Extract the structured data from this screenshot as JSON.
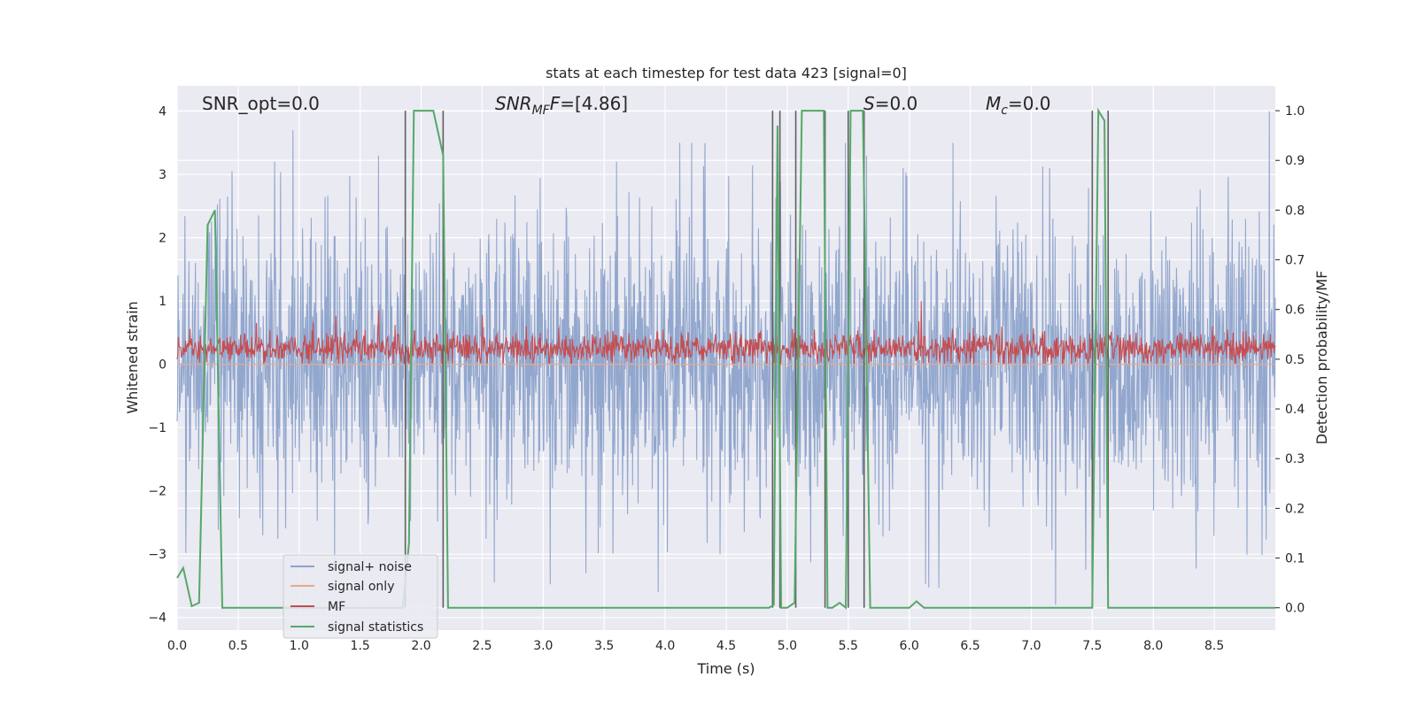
{
  "chart_data": {
    "type": "line",
    "title": "stats at each timestep for test data 423 [signal=0]",
    "xlabel": "Time (s)",
    "ylabel": "Whitened strain",
    "y2label": "Detection probability/MF",
    "xlim": [
      0,
      9.0
    ],
    "ylim": [
      -4.2,
      4.4
    ],
    "y2lim": [
      -0.045,
      1.05
    ],
    "xticks": [
      0.0,
      0.5,
      1.0,
      1.5,
      2.0,
      2.5,
      3.0,
      3.5,
      4.0,
      4.5,
      5.0,
      5.5,
      6.0,
      6.5,
      7.0,
      7.5,
      8.0,
      8.5
    ],
    "yticks": [
      -4,
      -3,
      -2,
      -1,
      0,
      1,
      2,
      3,
      4
    ],
    "y2ticks": [
      0.0,
      0.1,
      0.2,
      0.3,
      0.4,
      0.5,
      0.6,
      0.7,
      0.8,
      0.9,
      1.0
    ],
    "xtick_labels": [
      "0.0",
      "0.5",
      "1.0",
      "1.5",
      "2.0",
      "2.5",
      "3.0",
      "3.5",
      "4.0",
      "4.5",
      "5.0",
      "5.5",
      "6.0",
      "6.5",
      "7.0",
      "7.5",
      "8.0",
      "8.5"
    ],
    "ytick_labels": [
      "−4",
      "−3",
      "−2",
      "−1",
      "0",
      "1",
      "2",
      "3",
      "4"
    ],
    "y2tick_labels": [
      "0.0",
      "0.1",
      "0.2",
      "0.3",
      "0.4",
      "0.5",
      "0.6",
      "0.7",
      "0.8",
      "0.9",
      "1.0"
    ],
    "annotations": {
      "snr_opt": "SNR_opt=0.0",
      "snr_mf_main": "SNR",
      "snr_mf_sub": "MF",
      "snr_mf_value": "=[4.86]",
      "s_main": "S",
      "s_value": "=0.0",
      "mc_main": "M",
      "mc_sub": "c",
      "mc_value": "=0.0"
    },
    "legend": {
      "position": "lower-left",
      "entries": [
        "signal+ noise",
        "signal only",
        "MF",
        "signal statistics"
      ]
    },
    "colors": {
      "noise": "#8da3cb",
      "signal_only": "#e8a98a",
      "mf": "#c44e52",
      "stats": "#55a868",
      "vlines": "#606060",
      "background": "#eaeaf2",
      "grid": "#ffffff"
    },
    "series": [
      {
        "name": "signal+ noise",
        "axis": "left",
        "description": "dense whitened strain noise, approx amplitude range -3.5 to 4",
        "amplitude_sigma": 1.1,
        "peaks": [
          [
            0.45,
            3.05
          ],
          [
            0.8,
            3.2
          ],
          [
            0.95,
            3.7
          ],
          [
            1.65,
            3.3
          ],
          [
            3.6,
            3.2
          ],
          [
            5.65,
            3.3
          ],
          [
            5.95,
            3.1
          ],
          [
            7.15,
            3.1
          ],
          [
            8.95,
            4.0
          ],
          [
            3.35,
            -3.3
          ],
          [
            2.6,
            -3.45
          ],
          [
            7.2,
            -3.8
          ],
          [
            4.45,
            -3.0
          ]
        ]
      },
      {
        "name": "signal only",
        "axis": "left",
        "values_constant": 0.0
      },
      {
        "name": "MF",
        "axis": "left",
        "description": "matched-filter output, mostly 0.0 to 0.6",
        "baseline": 0.25,
        "peaks": [
          [
            1.65,
            0.85
          ],
          [
            2.5,
            0.78
          ],
          [
            6.1,
            1.0
          ],
          [
            1.3,
            0.77
          ],
          [
            5.65,
            0.73
          ]
        ]
      },
      {
        "name": "signal statistics",
        "axis": "right",
        "x": [
          0.0,
          0.05,
          0.12,
          0.18,
          0.25,
          0.31,
          0.37,
          1.85,
          1.9,
          1.94,
          2.1,
          2.18,
          2.22,
          4.85,
          4.89,
          4.92,
          4.95,
          5.0,
          5.06,
          5.12,
          5.3,
          5.33,
          5.37,
          5.43,
          5.48,
          5.52,
          5.62,
          5.68,
          5.75,
          6.0,
          6.06,
          6.12,
          7.5,
          7.55,
          7.6,
          7.63,
          7.7,
          9.0
        ],
        "y": [
          0.06,
          0.08,
          0.003,
          0.01,
          0.77,
          0.8,
          0.0,
          0.0,
          0.13,
          1.0,
          1.0,
          0.91,
          0.0,
          0.0,
          0.006,
          0.97,
          0.0,
          0.0,
          0.01,
          1.0,
          1.0,
          0.0,
          0.0,
          0.01,
          0.0,
          1.0,
          1.0,
          0.0,
          0.0,
          0.0,
          0.013,
          0.0,
          0.0,
          1.0,
          0.98,
          0.0,
          0.0,
          0.0
        ]
      }
    ],
    "vertical_markers": [
      1.87,
      2.18,
      4.88,
      4.94,
      5.07,
      5.31,
      5.5,
      5.63,
      7.5,
      7.63
    ]
  }
}
